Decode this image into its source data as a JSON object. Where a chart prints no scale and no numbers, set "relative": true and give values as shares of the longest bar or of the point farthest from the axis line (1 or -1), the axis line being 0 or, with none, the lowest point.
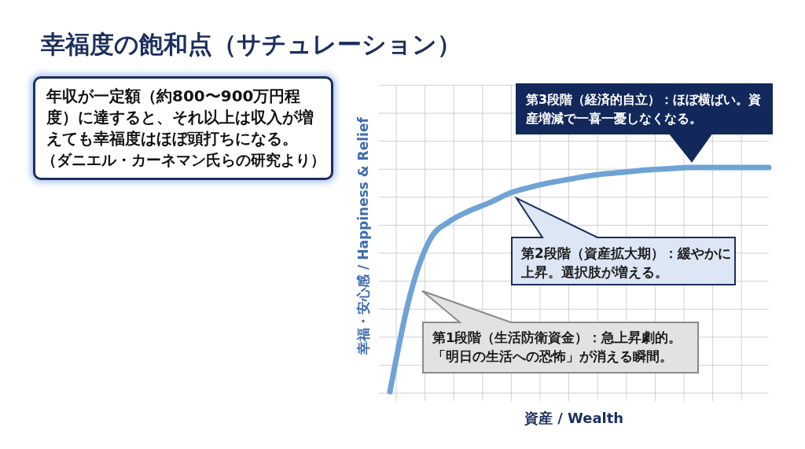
{
  "chart_data": {
    "type": "line",
    "title": "幸福度の飽和点（サチュレーション）",
    "xlabel": "資産 / Wealth",
    "ylabel": "幸福・安心感 / Happiness & Relief",
    "relative": true,
    "grid": true,
    "marker": "none",
    "line_style": "solid",
    "categories": [
      null,
      null,
      null,
      null,
      null,
      null,
      null,
      null,
      null,
      null,
      null,
      null,
      null,
      null,
      null,
      null,
      null,
      null,
      null,
      null
    ],
    "series": [
      {
        "color": "#6fa3d6",
        "values": [
          0.04,
          0.45,
          0.69,
          0.77,
          0.815,
          0.85,
          0.89,
          0.915,
          0.935,
          0.95,
          0.965,
          0.975,
          0.983,
          0.99,
          0.995,
          1,
          1,
          1,
          1,
          1
        ]
      }
    ],
    "annotations": [
      "年収が一定額（約800〜900万円程度）に達すると、それ以上は収入が増えても幸福度はほぼ頭打ちになる。",
      "（ダニエル・カーネマン氏らの研究より）",
      "第3段階（経済的自立）：ほぼ横ばい。資産増減で一喜一憂しなくなる。",
      "第2段階（資産拡大期）：緩やかに上昇。選択肢が増える。",
      "第1段階（生活防衛資金）：急上昇劇的。「明日の生活への恐怖」が消える瞬間。"
    ]
  }
}
